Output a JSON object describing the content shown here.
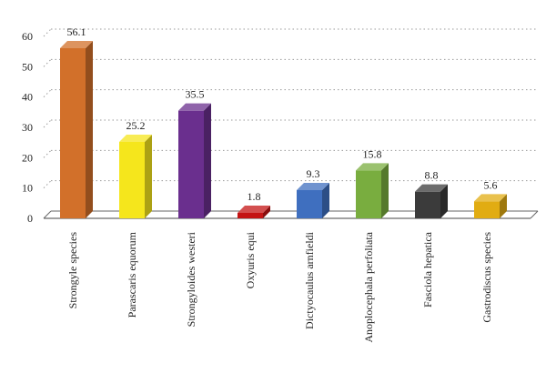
{
  "chart_data": {
    "type": "bar",
    "style": "3d",
    "categories": [
      "Strongyle species",
      "Parascaris equorum",
      "Strongyloides westeri",
      "Oxyuris equi",
      "Dictyocaulus arnfieldi",
      "Anoplocephala perfoliata",
      "Fasciola hepatica",
      "Gastrodiscus species"
    ],
    "values": [
      56.1,
      25.2,
      35.5,
      1.8,
      9.3,
      15.8,
      8.8,
      5.6
    ],
    "value_labels": [
      "56.1",
      "25.2",
      "35.5",
      "1.8",
      "9.3",
      "15.8",
      "8.8",
      "5.6"
    ],
    "colors": [
      "#d2702a",
      "#f5e61c",
      "#6a2f8e",
      "#c41414",
      "#3f6fbf",
      "#79ad3f",
      "#3b3b3b",
      "#e1ac12"
    ],
    "y_ticks": [
      0,
      10,
      20,
      30,
      40,
      50,
      60
    ],
    "y_tick_labels": [
      "0",
      "10",
      "20",
      "30",
      "40",
      "50",
      "60"
    ],
    "ylim": [
      0,
      60
    ],
    "title": "",
    "xlabel": "",
    "ylabel": "",
    "grid": "horizontal dotted",
    "legend": "none"
  }
}
